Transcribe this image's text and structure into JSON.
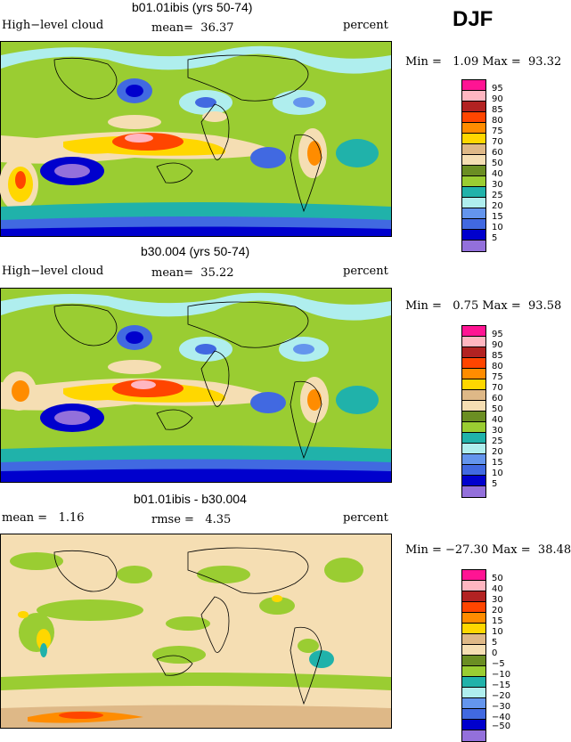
{
  "season": "DJF",
  "panels": [
    {
      "title": "b01.01ibis (yrs 50-74)",
      "left": "High−level cloud",
      "mid": "mean=  36.37",
      "right": "percent",
      "minmax": "Min =   1.09 Max =  93.32",
      "levels": [
        "95",
        "90",
        "85",
        "80",
        "75",
        "70",
        "60",
        "50",
        "40",
        "30",
        "25",
        "20",
        "15",
        "10",
        "5"
      ],
      "colors": [
        "#ff1493",
        "#ffb6c1",
        "#b22222",
        "#ff4500",
        "#ff8c00",
        "#ffd700",
        "#deb887",
        "#f5deb3",
        "#6b8e23",
        "#9acd32",
        "#20b2aa",
        "#afeeee",
        "#6495ed",
        "#4169e1",
        "#0000cd",
        "#9370db"
      ]
    },
    {
      "title": "b30.004 (yrs 50-74)",
      "left": "High−level cloud",
      "mid": "mean=  35.22",
      "right": "percent",
      "minmax": "Min =   0.75 Max =  93.58",
      "levels": [
        "95",
        "90",
        "85",
        "80",
        "75",
        "70",
        "60",
        "50",
        "40",
        "30",
        "25",
        "20",
        "15",
        "10",
        "5"
      ],
      "colors": [
        "#ff1493",
        "#ffb6c1",
        "#b22222",
        "#ff4500",
        "#ff8c00",
        "#ffd700",
        "#deb887",
        "#f5deb3",
        "#6b8e23",
        "#9acd32",
        "#20b2aa",
        "#afeeee",
        "#6495ed",
        "#4169e1",
        "#0000cd",
        "#9370db"
      ]
    },
    {
      "title": "b01.01ibis - b30.004",
      "left": "mean =   1.16",
      "mid": "rmse =   4.35",
      "right": "percent",
      "minmax": "Min = −27.30 Max =  38.48",
      "levels": [
        "50",
        "40",
        "30",
        "20",
        "15",
        "10",
        "5",
        "0",
        "−5",
        "−10",
        "−15",
        "−20",
        "−30",
        "−40",
        "−50"
      ],
      "colors": [
        "#ff1493",
        "#ffb6c1",
        "#b22222",
        "#ff4500",
        "#ff8c00",
        "#ffd700",
        "#deb887",
        "#f5deb3",
        "#6b8e23",
        "#9acd32",
        "#20b2aa",
        "#afeeee",
        "#6495ed",
        "#4169e1",
        "#0000cd",
        "#9370db"
      ]
    }
  ]
}
